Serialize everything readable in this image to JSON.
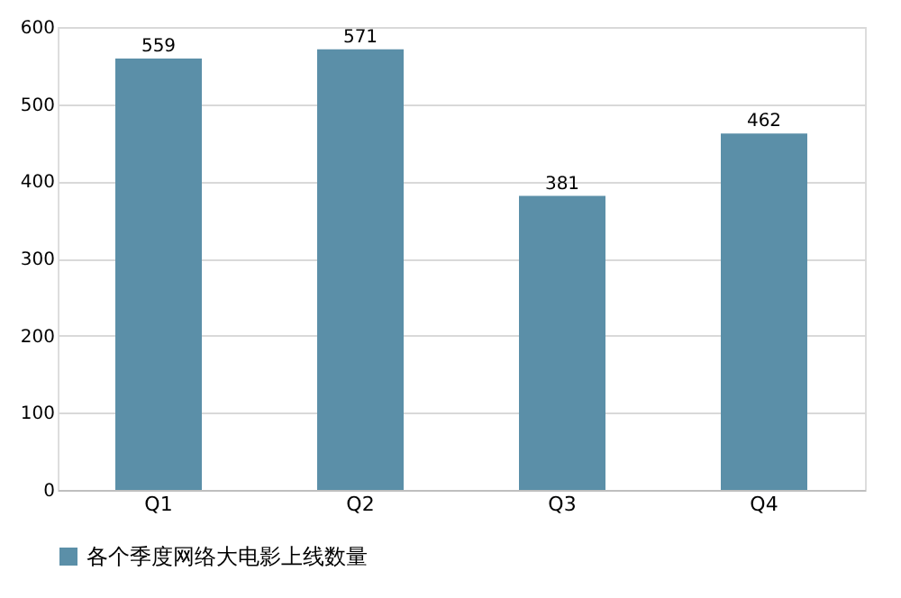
{
  "chart_data": {
    "type": "bar",
    "categories": [
      "Q1",
      "Q2",
      "Q3",
      "Q4"
    ],
    "series": [
      {
        "name": "各个季度网络大电影上线数量",
        "color": "#5b8fa8",
        "values": [
          559,
          571,
          381,
          462
        ]
      }
    ],
    "ylim": [
      0,
      600
    ],
    "yticks": [
      0,
      100,
      200,
      300,
      400,
      500,
      600
    ],
    "grid": "y",
    "legend": "bottom",
    "data_labels": true
  }
}
